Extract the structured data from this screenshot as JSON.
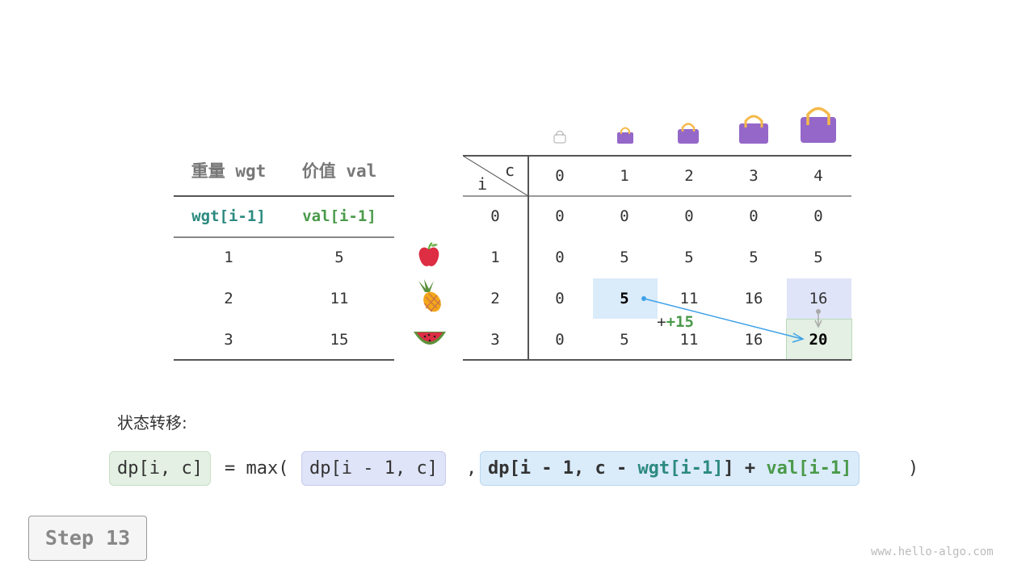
{
  "left_table": {
    "headers": [
      "重量 wgt",
      "价值 val"
    ],
    "subheaders": [
      "wgt[i-1]",
      "val[i-1]"
    ],
    "rows": [
      [
        "1",
        "5"
      ],
      [
        "2",
        "11"
      ],
      [
        "3",
        "15"
      ]
    ],
    "items": [
      "apple-icon",
      "pineapple-icon",
      "watermelon-icon"
    ]
  },
  "dp_table": {
    "corner_i": "i",
    "corner_c": "c",
    "col_headers": [
      "0",
      "1",
      "2",
      "3",
      "4"
    ],
    "row_headers": [
      "0",
      "1",
      "2",
      "3"
    ],
    "rows": [
      [
        "0",
        "0",
        "0",
        "0",
        "0"
      ],
      [
        "0",
        "5",
        "5",
        "5",
        "5"
      ],
      [
        "0",
        "5",
        "11",
        "16",
        "16"
      ],
      [
        "0",
        "5",
        "11",
        "16",
        "20"
      ]
    ],
    "bag_icons": [
      "empty-bag-icon",
      "bag-icon",
      "bag-icon",
      "bag-icon",
      "bag-icon"
    ],
    "plus_label": "+15"
  },
  "formula": {
    "label": "状态转移:",
    "lhs": "dp[i, c]",
    "eq": "= max(",
    "opt1": "dp[i - 1, c]",
    "comma": ",",
    "opt2_a": "dp[i - 1, c - ",
    "opt2_wgt": "wgt[i-1]",
    "opt2_b": "] + ",
    "opt2_val": "val[i-1]",
    "close": ")"
  },
  "step_label": "Step 13",
  "watermark": "www.hello-algo.com",
  "colors": {
    "teal": "#2c8a80",
    "green": "#4a9a4a",
    "blue_cell": "#daebfa",
    "lavender_cell": "#e0e4f8",
    "green_cell": "#e3f0e3",
    "arrow": "#3ea2e8",
    "bag": "#9467c9",
    "handle": "#f5b94a"
  }
}
